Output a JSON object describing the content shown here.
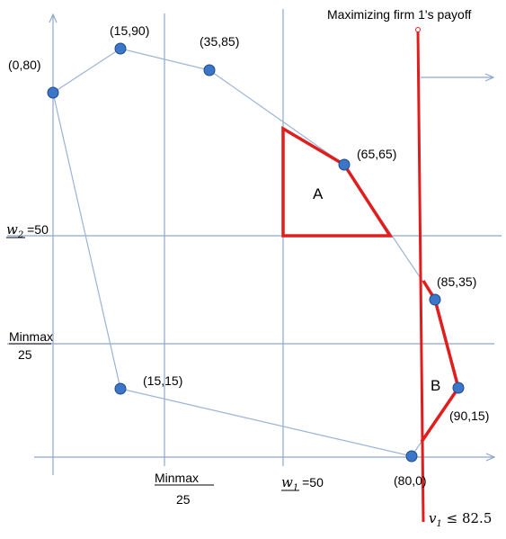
{
  "colors": {
    "axis": "#8FA8CB",
    "polygon": "#9BB3D6",
    "red": "#E01E1E",
    "point_fill": "#3C76C9",
    "point_stroke": "#1E4A8A"
  },
  "points": [
    {
      "label": "(0,80)",
      "w1": 0,
      "w2": 80
    },
    {
      "label": "(15,90)",
      "w1": 15,
      "w2": 90
    },
    {
      "label": "(35,85)",
      "w1": 35,
      "w2": 85
    },
    {
      "label": "(65,65)",
      "w1": 65,
      "w2": 65
    },
    {
      "label": "(85,35)",
      "w1": 85,
      "w2": 35
    },
    {
      "label": "(90,15)",
      "w1": 90,
      "w2": 15
    },
    {
      "label": "(80,0)",
      "w1": 80,
      "w2": 0
    },
    {
      "label": "(15,15)",
      "w1": 15,
      "w2": 15
    }
  ],
  "regions": {
    "a": "A",
    "b": "B"
  },
  "annotations": {
    "title": "Maximizing firm 1's payoff",
    "w2_sym": "w",
    "w2_sub": "2",
    "w2_val": " =50",
    "w1_sym": "w",
    "w1_sub": "1",
    "w1_val": " =50",
    "minmax_left_1": "Minmax",
    "minmax_left_2": "25",
    "minmax_bottom_1": "Minmax",
    "minmax_bottom_2": "25",
    "v1_sym": "v",
    "v1_sub": "1",
    "v1_val": " ≤ 82.5"
  }
}
